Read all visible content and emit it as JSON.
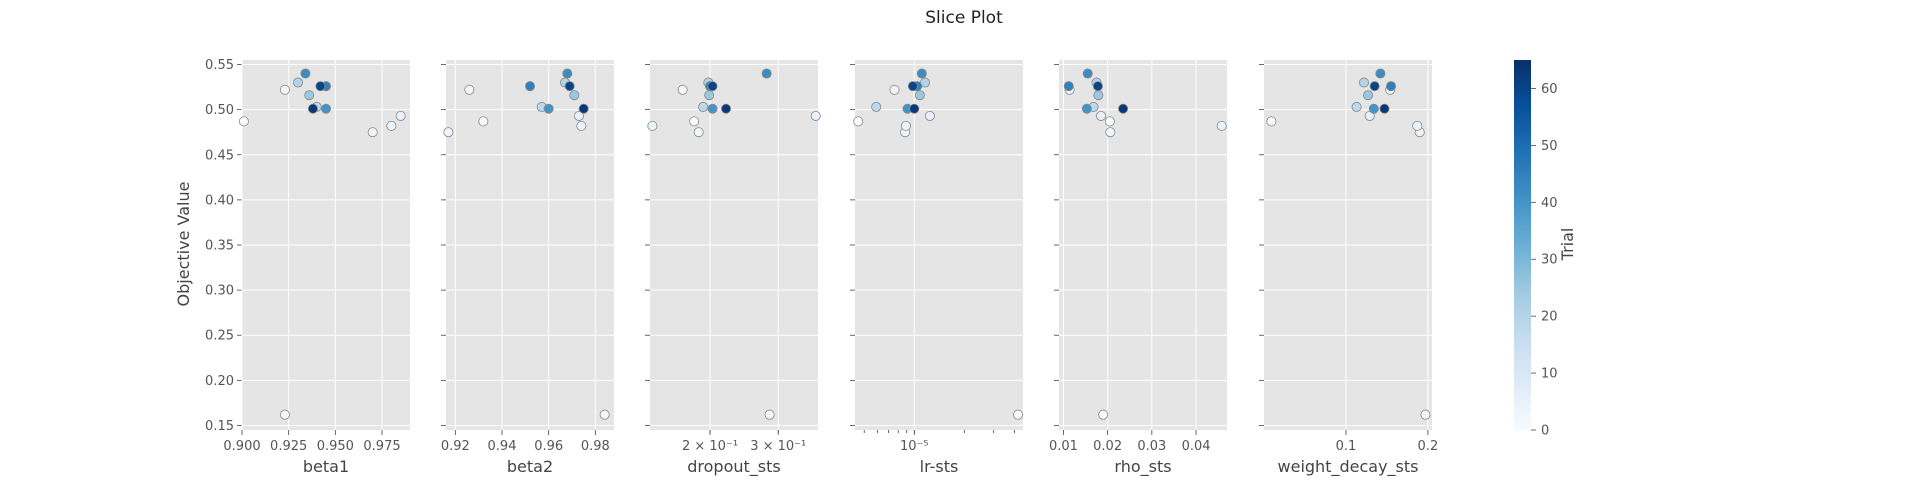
{
  "chart_data": {
    "type": "scatter",
    "title": "Slice Plot",
    "ylabel": "Objective Value",
    "ylim": [
      0.145,
      0.555
    ],
    "yticks": [
      "0.15",
      "0.20",
      "0.25",
      "0.30",
      "0.35",
      "0.40",
      "0.45",
      "0.50",
      "0.55"
    ],
    "yticks_values": [
      0.15,
      0.2,
      0.25,
      0.3,
      0.35,
      0.4,
      0.45,
      0.5,
      0.55
    ],
    "grid": true,
    "colorbar": {
      "label": "Trial",
      "colormap": "Blues",
      "range": [
        0,
        65
      ],
      "ticks": [
        "0",
        "10",
        "20",
        "30",
        "40",
        "50",
        "60"
      ],
      "ticks_values": [
        0,
        10,
        20,
        30,
        40,
        50,
        60
      ],
      "color_stops": [
        "#f7fbff",
        "#deebf7",
        "#c6dbef",
        "#9ecae1",
        "#6baed6",
        "#4292c6",
        "#2171b5",
        "#08519c",
        "#08306b"
      ]
    },
    "subplots": [
      {
        "xlabel": "beta1",
        "scale": "linear",
        "xlim": [
          0.9,
          0.99
        ],
        "xticks": [
          "0.900",
          "0.925",
          "0.950",
          "0.975"
        ],
        "xticks_values": [
          0.9,
          0.925,
          0.95,
          0.975
        ],
        "points": [
          {
            "x": 0.901,
            "y": 0.487,
            "trial": 0
          },
          {
            "x": 0.923,
            "y": 0.522,
            "trial": 2
          },
          {
            "x": 0.923,
            "y": 0.162,
            "trial": 1
          },
          {
            "x": 0.93,
            "y": 0.53,
            "trial": 20
          },
          {
            "x": 0.934,
            "y": 0.54,
            "trial": 42
          },
          {
            "x": 0.936,
            "y": 0.516,
            "trial": 25
          },
          {
            "x": 0.938,
            "y": 0.501,
            "trial": 63
          },
          {
            "x": 0.94,
            "y": 0.503,
            "trial": 18
          },
          {
            "x": 0.942,
            "y": 0.526,
            "trial": 60
          },
          {
            "x": 0.945,
            "y": 0.526,
            "trial": 45
          },
          {
            "x": 0.945,
            "y": 0.501,
            "trial": 40
          },
          {
            "x": 0.97,
            "y": 0.475,
            "trial": 3
          },
          {
            "x": 0.98,
            "y": 0.482,
            "trial": 4
          },
          {
            "x": 0.985,
            "y": 0.493,
            "trial": 5
          }
        ]
      },
      {
        "xlabel": "beta2",
        "scale": "linear",
        "xlim": [
          0.916,
          0.988
        ],
        "xticks": [
          "0.92",
          "0.94",
          "0.96",
          "0.98"
        ],
        "xticks_values": [
          0.92,
          0.94,
          0.96,
          0.98
        ],
        "points": [
          {
            "x": 0.917,
            "y": 0.475,
            "trial": 3
          },
          {
            "x": 0.926,
            "y": 0.522,
            "trial": 2
          },
          {
            "x": 0.932,
            "y": 0.487,
            "trial": 0
          },
          {
            "x": 0.952,
            "y": 0.526,
            "trial": 45
          },
          {
            "x": 0.957,
            "y": 0.503,
            "trial": 18
          },
          {
            "x": 0.96,
            "y": 0.501,
            "trial": 40
          },
          {
            "x": 0.967,
            "y": 0.53,
            "trial": 20
          },
          {
            "x": 0.968,
            "y": 0.54,
            "trial": 42
          },
          {
            "x": 0.969,
            "y": 0.526,
            "trial": 60
          },
          {
            "x": 0.971,
            "y": 0.516,
            "trial": 25
          },
          {
            "x": 0.973,
            "y": 0.493,
            "trial": 5
          },
          {
            "x": 0.974,
            "y": 0.482,
            "trial": 4
          },
          {
            "x": 0.975,
            "y": 0.501,
            "trial": 63
          },
          {
            "x": 0.984,
            "y": 0.162,
            "trial": 1
          }
        ]
      },
      {
        "xlabel": "dropout_sts",
        "scale": "log",
        "xlim": [
          0.14,
          0.38
        ],
        "xticks": [
          "2 × 10⁻¹",
          "3 × 10⁻¹"
        ],
        "xticks_values": [
          0.2,
          0.3
        ],
        "points": [
          {
            "x": 0.142,
            "y": 0.482,
            "trial": 4
          },
          {
            "x": 0.17,
            "y": 0.522,
            "trial": 2
          },
          {
            "x": 0.182,
            "y": 0.487,
            "trial": 0
          },
          {
            "x": 0.187,
            "y": 0.475,
            "trial": 3
          },
          {
            "x": 0.192,
            "y": 0.503,
            "trial": 18
          },
          {
            "x": 0.198,
            "y": 0.53,
            "trial": 20
          },
          {
            "x": 0.199,
            "y": 0.516,
            "trial": 25
          },
          {
            "x": 0.2,
            "y": 0.526,
            "trial": 45
          },
          {
            "x": 0.203,
            "y": 0.526,
            "trial": 60
          },
          {
            "x": 0.203,
            "y": 0.501,
            "trial": 40
          },
          {
            "x": 0.22,
            "y": 0.501,
            "trial": 63
          },
          {
            "x": 0.28,
            "y": 0.54,
            "trial": 42
          },
          {
            "x": 0.285,
            "y": 0.162,
            "trial": 1
          },
          {
            "x": 0.375,
            "y": 0.493,
            "trial": 5
          }
        ]
      },
      {
        "xlabel": "lr-sts",
        "scale": "log",
        "xlim": [
          4.4e-06,
          4.5e-05
        ],
        "xticks": [
          "10⁻⁵"
        ],
        "xticks_values": [
          1e-05
        ],
        "points": [
          {
            "x": 4.6e-06,
            "y": 0.487,
            "trial": 0
          },
          {
            "x": 5.9e-06,
            "y": 0.503,
            "trial": 18
          },
          {
            "x": 7.6e-06,
            "y": 0.522,
            "trial": 2
          },
          {
            "x": 8.8e-06,
            "y": 0.475,
            "trial": 3
          },
          {
            "x": 8.9e-06,
            "y": 0.482,
            "trial": 4
          },
          {
            "x": 9.1e-06,
            "y": 0.501,
            "trial": 40
          },
          {
            "x": 9.8e-06,
            "y": 0.526,
            "trial": 60
          },
          {
            "x": 1e-05,
            "y": 0.501,
            "trial": 63
          },
          {
            "x": 1.04e-05,
            "y": 0.526,
            "trial": 45
          },
          {
            "x": 1.08e-05,
            "y": 0.516,
            "trial": 25
          },
          {
            "x": 1.11e-05,
            "y": 0.54,
            "trial": 42
          },
          {
            "x": 1.16e-05,
            "y": 0.53,
            "trial": 20
          },
          {
            "x": 1.24e-05,
            "y": 0.493,
            "trial": 5
          },
          {
            "x": 4.2e-05,
            "y": 0.162,
            "trial": 1
          }
        ]
      },
      {
        "xlabel": "rho_sts",
        "scale": "linear",
        "xlim": [
          0.009,
          0.047
        ],
        "xticks": [
          "0.01",
          "0.02",
          "0.03",
          "0.04"
        ],
        "xticks_values": [
          0.01,
          0.02,
          0.03,
          0.04
        ],
        "points": [
          {
            "x": 0.0112,
            "y": 0.526,
            "trial": 45
          },
          {
            "x": 0.0114,
            "y": 0.522,
            "trial": 2
          },
          {
            "x": 0.0153,
            "y": 0.501,
            "trial": 40
          },
          {
            "x": 0.0155,
            "y": 0.54,
            "trial": 42
          },
          {
            "x": 0.0168,
            "y": 0.503,
            "trial": 18
          },
          {
            "x": 0.0175,
            "y": 0.53,
            "trial": 20
          },
          {
            "x": 0.0178,
            "y": 0.526,
            "trial": 60
          },
          {
            "x": 0.0179,
            "y": 0.516,
            "trial": 25
          },
          {
            "x": 0.0185,
            "y": 0.493,
            "trial": 5
          },
          {
            "x": 0.019,
            "y": 0.162,
            "trial": 1
          },
          {
            "x": 0.0205,
            "y": 0.487,
            "trial": 0
          },
          {
            "x": 0.0206,
            "y": 0.475,
            "trial": 3
          },
          {
            "x": 0.0235,
            "y": 0.501,
            "trial": 63
          },
          {
            "x": 0.0458,
            "y": 0.482,
            "trial": 4
          }
        ]
      },
      {
        "xlabel": "weight_decay_sts",
        "scale": "linear",
        "xlim": [
          0.0,
          0.205
        ],
        "xticks": [
          "0.1",
          "0.2"
        ],
        "xticks_values": [
          0.1,
          0.2
        ],
        "points": [
          {
            "x": 0.009,
            "y": 0.487,
            "trial": 0
          },
          {
            "x": 0.113,
            "y": 0.503,
            "trial": 18
          },
          {
            "x": 0.122,
            "y": 0.53,
            "trial": 20
          },
          {
            "x": 0.127,
            "y": 0.516,
            "trial": 25
          },
          {
            "x": 0.129,
            "y": 0.493,
            "trial": 5
          },
          {
            "x": 0.134,
            "y": 0.501,
            "trial": 40
          },
          {
            "x": 0.135,
            "y": 0.526,
            "trial": 60
          },
          {
            "x": 0.142,
            "y": 0.54,
            "trial": 42
          },
          {
            "x": 0.147,
            "y": 0.501,
            "trial": 63
          },
          {
            "x": 0.154,
            "y": 0.522,
            "trial": 2
          },
          {
            "x": 0.155,
            "y": 0.526,
            "trial": 45
          },
          {
            "x": 0.187,
            "y": 0.482,
            "trial": 4
          },
          {
            "x": 0.19,
            "y": 0.475,
            "trial": 3
          },
          {
            "x": 0.197,
            "y": 0.162,
            "trial": 1
          }
        ]
      }
    ]
  }
}
